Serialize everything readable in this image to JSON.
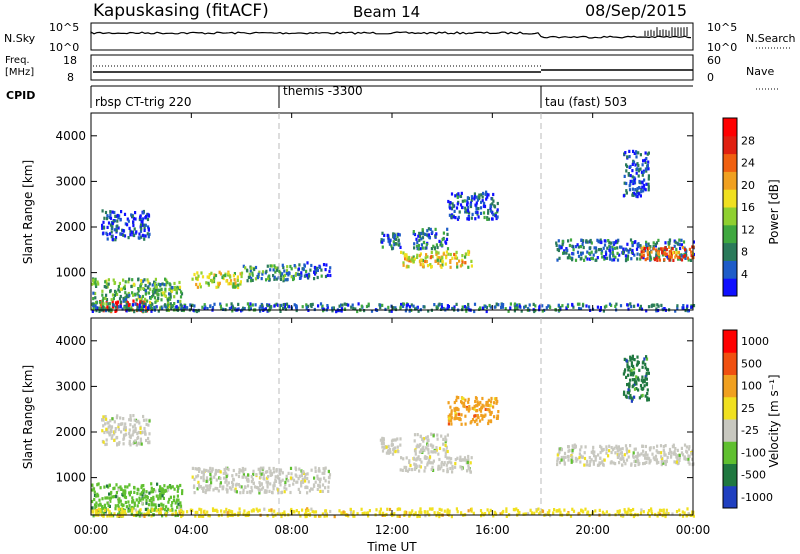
{
  "header": {
    "station": "Kapuskasing (fitACF)",
    "beam": "Beam 14",
    "date": "08/Sep/2015"
  },
  "noise_panel": {
    "left_label": "N.Sky",
    "right_label": "N.Search",
    "left_ticks": [
      "10^5",
      "10^0"
    ],
    "right_ticks": [
      "10^5",
      "10^0"
    ]
  },
  "freq_panel": {
    "left_label_1": "Freq.",
    "left_label_2": "[MHz]",
    "right_label": "Nave",
    "left_ticks": [
      "18",
      "8"
    ],
    "right_ticks": [
      "60",
      "0"
    ]
  },
  "cpid_panel": {
    "label": "CPID",
    "segments": [
      {
        "label": "rbsp CT-trig 220",
        "start_hour": 0
      },
      {
        "label": "themis -3300",
        "start_hour": 7.5
      },
      {
        "label": "tau (fast) 503",
        "start_hour": 18
      }
    ]
  },
  "x_axis": {
    "title": "Time UT",
    "ticks": [
      "00:00",
      "04:00",
      "08:00",
      "12:00",
      "16:00",
      "20:00",
      "00:00"
    ],
    "tick_hours": [
      0,
      4,
      8,
      12,
      16,
      20,
      24
    ]
  },
  "colors": {
    "power": [
      "#1010ff",
      "#1e5cc8",
      "#2a7a5a",
      "#3fa83f",
      "#8fd030",
      "#f0e020",
      "#f0a020",
      "#f06010",
      "#e02010",
      "#ff0000"
    ],
    "velocity": [
      "#2040c0",
      "#207840",
      "#60c030",
      "#c8c8c0",
      "#f0e020",
      "#f0a020",
      "#f05010",
      "#ff0000"
    ]
  },
  "chart_data": [
    {
      "type": "heatmap",
      "name": "power",
      "ylabel": "Slant Range [km]",
      "xlabel": "",
      "xlim": [
        0,
        24
      ],
      "ylim": [
        180,
        4500
      ],
      "yticks": [
        1000,
        2000,
        3000,
        4000
      ],
      "colorbar": {
        "label": "Power [dB]",
        "ticks": [
          4,
          8,
          12,
          16,
          20,
          24,
          28
        ],
        "range": [
          0,
          30
        ]
      },
      "patches": [
        {
          "t0": 0.1,
          "t1": 2.2,
          "r0": 180,
          "r1": 420,
          "level": 0.92
        },
        {
          "t0": 0.0,
          "t1": 3.6,
          "r0": 180,
          "r1": 900,
          "level": 0.35
        },
        {
          "t0": 0.4,
          "t1": 2.3,
          "r0": 1750,
          "r1": 2400,
          "level": 0.12
        },
        {
          "t0": 4.0,
          "t1": 6.0,
          "r0": 700,
          "r1": 1050,
          "level": 0.5
        },
        {
          "t0": 6.0,
          "t1": 8.2,
          "r0": 850,
          "r1": 1200,
          "level": 0.3
        },
        {
          "t0": 8.2,
          "t1": 9.5,
          "r0": 900,
          "r1": 1250,
          "level": 0.15
        },
        {
          "t0": 11.5,
          "t1": 12.3,
          "r0": 1550,
          "r1": 1900,
          "level": 0.15
        },
        {
          "t0": 12.3,
          "t1": 15.2,
          "r0": 1150,
          "r1": 1500,
          "level": 0.55
        },
        {
          "t0": 12.8,
          "t1": 14.2,
          "r0": 1550,
          "r1": 2000,
          "level": 0.2
        },
        {
          "t0": 14.2,
          "t1": 16.2,
          "r0": 2200,
          "r1": 2800,
          "level": 0.15
        },
        {
          "t0": 18.5,
          "t1": 24.0,
          "r0": 1300,
          "r1": 1750,
          "level": 0.2
        },
        {
          "t0": 21.8,
          "t1": 24.0,
          "r0": 1300,
          "r1": 1600,
          "level": 0.75
        },
        {
          "t0": 21.2,
          "t1": 22.2,
          "r0": 2700,
          "r1": 3700,
          "level": 0.12
        },
        {
          "t0": 0.0,
          "t1": 24.0,
          "r0": 180,
          "r1": 350,
          "level": 0.2
        }
      ]
    },
    {
      "type": "heatmap",
      "name": "velocity",
      "ylabel": "Slant Range [km]",
      "xlabel": "Time UT",
      "xlim": [
        0,
        24
      ],
      "ylim": [
        180,
        4500
      ],
      "yticks": [
        1000,
        2000,
        3000,
        4000
      ],
      "colorbar": {
        "label": "Velocity [m s⁻¹]",
        "ticks": [
          "1000",
          "500",
          "100",
          "25",
          "-25",
          "-100",
          "-500",
          "-1000"
        ]
      },
      "patches": [
        {
          "t0": 0.0,
          "t1": 3.6,
          "r0": 180,
          "r1": 900,
          "cls": 2
        },
        {
          "t0": 0.4,
          "t1": 2.3,
          "r0": 1750,
          "r1": 2400,
          "cls": 3
        },
        {
          "t0": 4.0,
          "t1": 9.5,
          "r0": 700,
          "r1": 1250,
          "cls": 3
        },
        {
          "t0": 12.3,
          "t1": 15.2,
          "r0": 1150,
          "r1": 1500,
          "cls": 3
        },
        {
          "t0": 11.5,
          "t1": 12.3,
          "r0": 1550,
          "r1": 1900,
          "cls": 3
        },
        {
          "t0": 12.8,
          "t1": 14.2,
          "r0": 1550,
          "r1": 2000,
          "cls": 3
        },
        {
          "t0": 14.2,
          "t1": 16.2,
          "r0": 2200,
          "r1": 2800,
          "cls": 5
        },
        {
          "t0": 18.5,
          "t1": 24.0,
          "r0": 1300,
          "r1": 1750,
          "cls": 3
        },
        {
          "t0": 21.2,
          "t1": 22.2,
          "r0": 2700,
          "r1": 3700,
          "cls": 1
        },
        {
          "t0": 0.0,
          "t1": 24.0,
          "r0": 180,
          "r1": 350,
          "cls": 4
        }
      ]
    }
  ]
}
